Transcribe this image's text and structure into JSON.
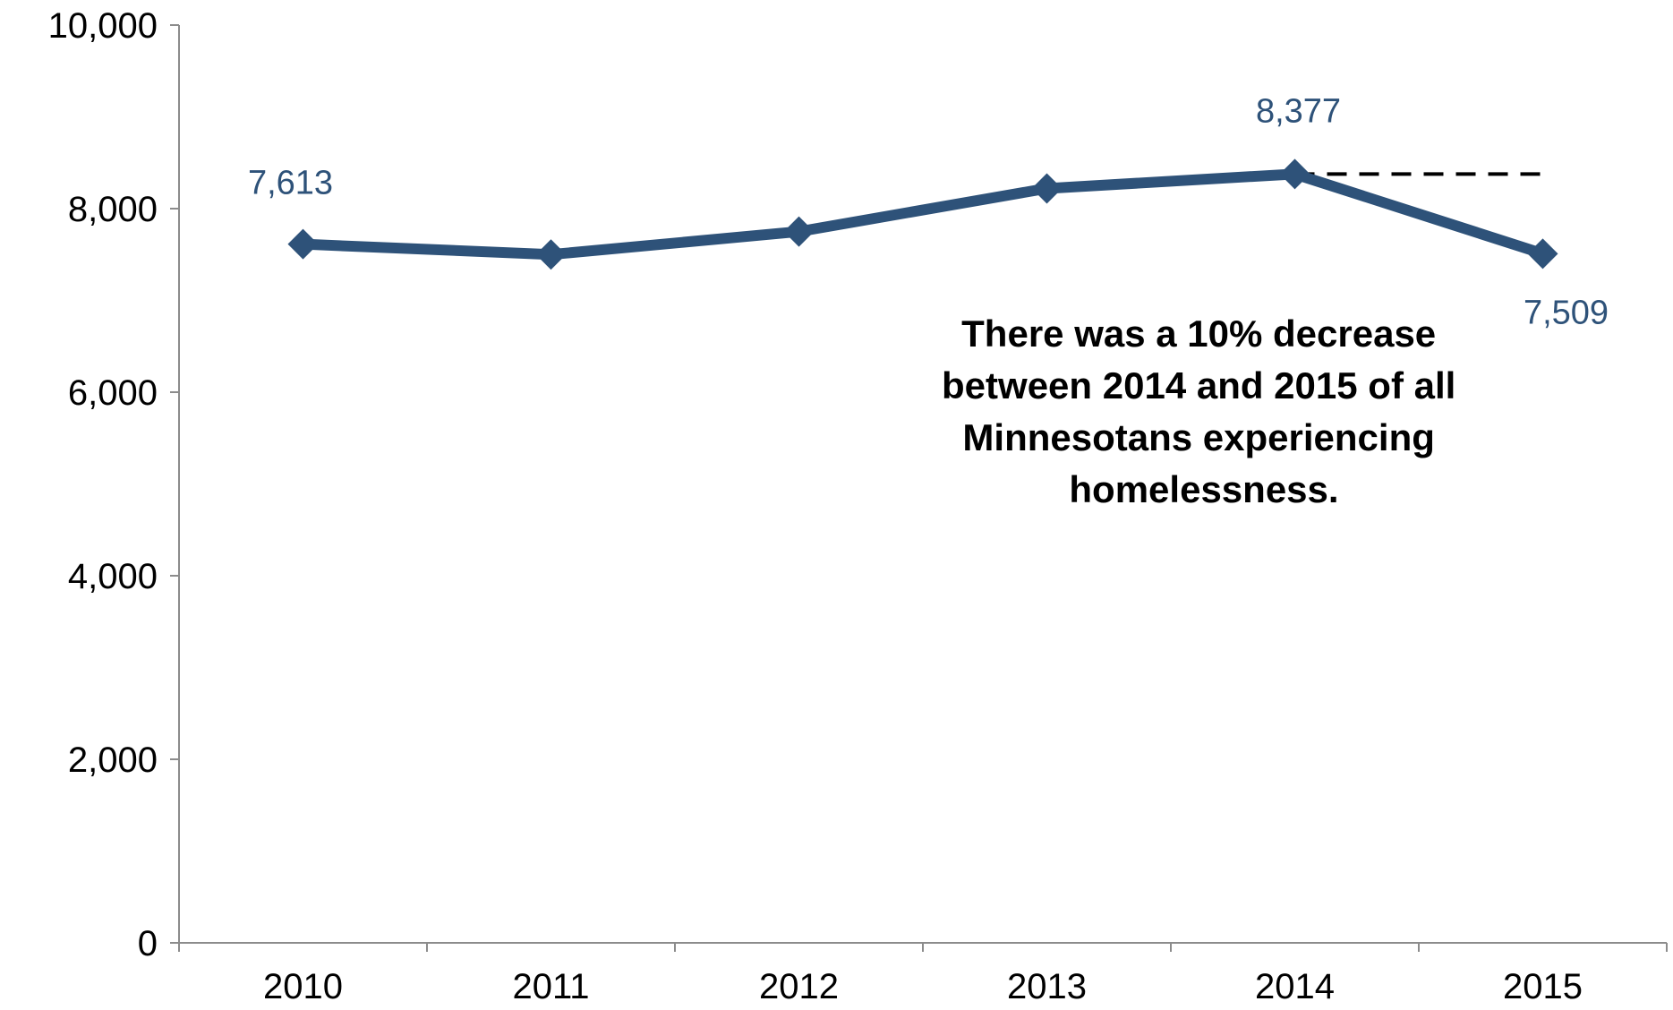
{
  "colors": {
    "series": "#2e5279",
    "axis": "#8c8c8c",
    "reference_line": "#000000"
  },
  "chart_data": {
    "type": "line",
    "categories": [
      "2010",
      "2011",
      "2012",
      "2013",
      "2014",
      "2015"
    ],
    "series": [
      {
        "values": [
          7613,
          7500,
          7750,
          8220,
          8377,
          7509
        ]
      }
    ],
    "data_labels": [
      {
        "category": "2010",
        "text": "7,613"
      },
      {
        "category": "2014",
        "text": "8,377"
      },
      {
        "category": "2015",
        "text": "7,509"
      }
    ],
    "reference_line": {
      "value": 8377,
      "from": "2014",
      "to": "2015",
      "style": "dashed"
    },
    "annotation": [
      "There was a 10% decrease",
      "between 2014 and 2015 of all",
      "Minnesotans experiencing",
      "homelessness."
    ],
    "y_ticks": [
      "0",
      "2,000",
      "4,000",
      "6,000",
      "8,000",
      "10,000"
    ],
    "ylim": [
      0,
      10000
    ],
    "grid": false,
    "legend": "none",
    "marker": "diamond"
  }
}
